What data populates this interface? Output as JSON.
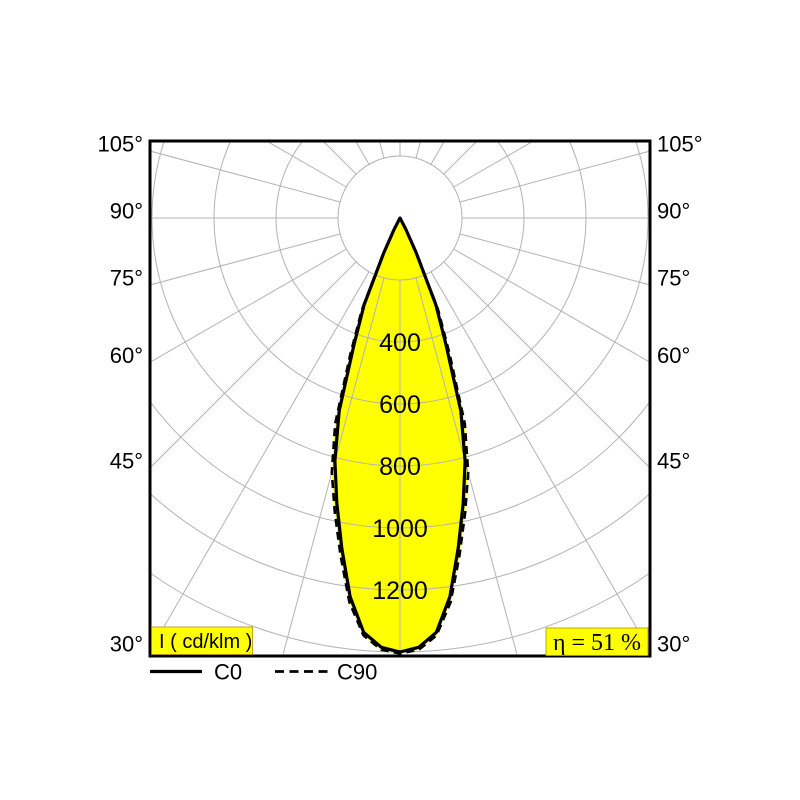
{
  "labels": {
    "unit": "I ( cd/klm )",
    "efficiency": "η = 51 %"
  },
  "legend": {
    "c0": "C0",
    "c90": "C90"
  },
  "chart_data": {
    "type": "line",
    "subtype": "polar-luminous-intensity-distribution",
    "unit_label": "I ( cd/klm )",
    "efficiency": "η = 51 %",
    "angle_ticks_deg": [
      30,
      45,
      60,
      75,
      90,
      105
    ],
    "angle_tick_suffix": "°",
    "angle_labels_shown_on": [
      "left",
      "right"
    ],
    "ring_label_values": [
      400,
      600,
      800,
      1000,
      1200
    ],
    "radial_gridlines_cd_klm": [
      200,
      400,
      600,
      800,
      1000,
      1200,
      1400
    ],
    "angular_grid_step_deg": 15,
    "rmax_cd_klm": 1400,
    "legend_entries": [
      {
        "name": "C0",
        "line_style": "solid"
      },
      {
        "name": "C90",
        "line_style": "dashed"
      }
    ],
    "series": [
      {
        "name": "C0",
        "line_style": "solid",
        "angles_deg": [
          0,
          2.5,
          5,
          7.5,
          10,
          12.5,
          15,
          17.5,
          20,
          22.5,
          25,
          27.5,
          30
        ],
        "intensity_cd_klm": [
          1400,
          1386,
          1342,
          1232,
          1082,
          942,
          812,
          652,
          432,
          302,
          122,
          40,
          0
        ]
      },
      {
        "name": "C90",
        "line_style": "dashed",
        "angles_deg": [
          0,
          2.5,
          5,
          7.5,
          10,
          12.5,
          15,
          17.5,
          20,
          22.5,
          25,
          27.5,
          30
        ],
        "intensity_cd_klm": [
          1405,
          1394,
          1352,
          1250,
          1105,
          972,
          850,
          695,
          470,
          322,
          132,
          44,
          0
        ]
      }
    ],
    "colors": {
      "beam_fill": "#ffff00",
      "grid_line": "#b3b3b3",
      "curve": "#000000",
      "label_background": "#ffff00"
    }
  }
}
